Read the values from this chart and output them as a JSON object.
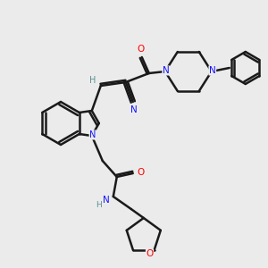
{
  "background_color": "#ebebeb",
  "bond_color": "#1a1a1a",
  "atom_colors": {
    "N": "#1414ff",
    "O": "#ff0000",
    "C": "#1a1a1a",
    "H": "#5a9090"
  },
  "figsize": [
    3.0,
    3.0
  ],
  "dpi": 100
}
